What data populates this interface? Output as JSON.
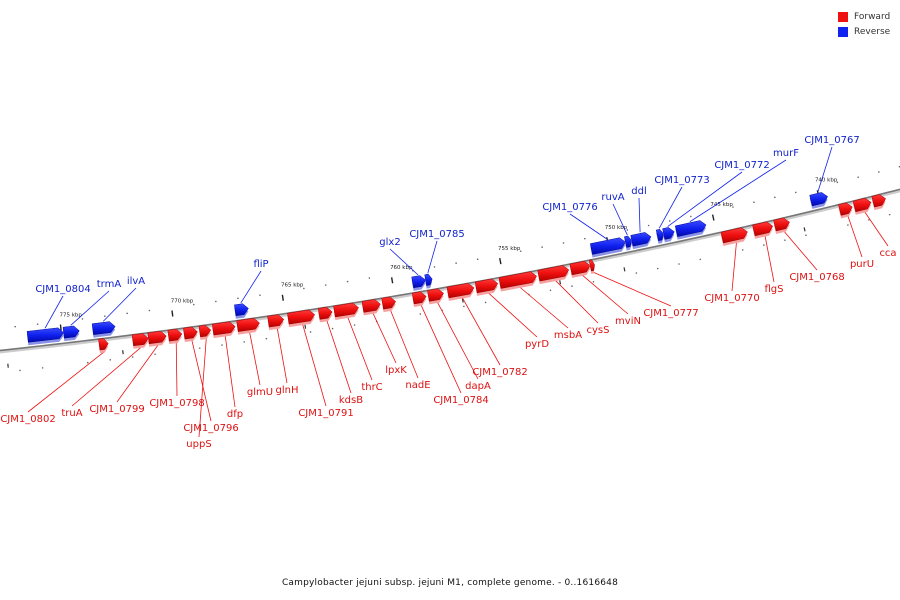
{
  "caption": "Campylobacter jejuni subsp. jejuni M1, complete genome. - 0..1616648",
  "legend": [
    {
      "label": "Forward",
      "color": "#ee1111"
    },
    {
      "label": "Reverse",
      "color": "#1122ee"
    }
  ],
  "colors": {
    "forward": "#ee1111",
    "reverse": "#1122ee",
    "backbone": "#888888"
  },
  "ticks": [
    {
      "label": "775 kbp",
      "kbp": 775
    },
    {
      "label": "770 kbp",
      "kbp": 770
    },
    {
      "label": "765 kbp",
      "kbp": 765
    },
    {
      "label": "760 kbp",
      "kbp": 760
    },
    {
      "label": "755 kbp",
      "kbp": 755
    },
    {
      "label": "750 kbp",
      "kbp": 750
    },
    {
      "label": "745 kbp",
      "kbp": 745
    },
    {
      "label": "740 kbp",
      "kbp": 740
    }
  ],
  "genes": [
    {
      "name": "CJM1_0804",
      "strand": "reverse",
      "start": 776.5,
      "end": 774.9,
      "show_label": true
    },
    {
      "name": "trmA",
      "strand": "reverse",
      "start": 774.9,
      "end": 774.2,
      "show_label": true
    },
    {
      "name": "ilvA",
      "strand": "reverse",
      "start": 773.6,
      "end": 772.6,
      "show_label": true
    },
    {
      "name": "fliP",
      "strand": "reverse",
      "start": 767.2,
      "end": 766.6,
      "show_label": true
    },
    {
      "name": "glx2",
      "strand": "reverse",
      "start": 759.1,
      "end": 758.5,
      "show_label": true
    },
    {
      "name": "CJM1_0785",
      "strand": "reverse",
      "start": 758.5,
      "end": 758.2,
      "show_label": true
    },
    {
      "name": "CJM1_0776",
      "strand": "reverse",
      "start": 750.8,
      "end": 749.2,
      "show_label": true
    },
    {
      "name": "ruvA",
      "strand": "reverse",
      "start": 749.2,
      "end": 748.9,
      "show_label": true
    },
    {
      "name": "ddl",
      "strand": "reverse",
      "start": 748.9,
      "end": 748.0,
      "show_label": true
    },
    {
      "name": "CJM1_0773",
      "strand": "reverse",
      "start": 747.7,
      "end": 747.4,
      "show_label": true
    },
    {
      "name": "CJM1_0772",
      "strand": "reverse",
      "start": 747.4,
      "end": 746.9,
      "show_label": true
    },
    {
      "name": "murF",
      "strand": "reverse",
      "start": 746.8,
      "end": 745.4,
      "show_label": true
    },
    {
      "name": "CJM1_0767",
      "strand": "reverse",
      "start": 740.4,
      "end": 739.6,
      "show_label": true
    },
    {
      "name": "CJM1_0802",
      "strand": "forward",
      "start": 773.4,
      "end": 773.0,
      "show_label": true
    },
    {
      "name": "truA",
      "strand": "forward",
      "start": 771.9,
      "end": 771.2,
      "show_label": true
    },
    {
      "name": "CJM1_0799",
      "strand": "forward",
      "start": 771.2,
      "end": 770.4,
      "show_label": true
    },
    {
      "name": "CJM1_0798",
      "strand": "forward",
      "start": 770.3,
      "end": 769.7,
      "show_label": true
    },
    {
      "name": "CJM1_0796",
      "strand": "forward",
      "start": 769.6,
      "end": 769.0,
      "show_label": true
    },
    {
      "name": "uppS",
      "strand": "forward",
      "start": 768.9,
      "end": 768.4,
      "show_label": true
    },
    {
      "name": "dfp",
      "strand": "forward",
      "start": 768.3,
      "end": 767.3,
      "show_label": true
    },
    {
      "name": "glmU",
      "strand": "forward",
      "start": 767.2,
      "end": 766.2,
      "show_label": true
    },
    {
      "name": "glnH",
      "strand": "forward",
      "start": 765.8,
      "end": 765.1,
      "show_label": true
    },
    {
      "name": "CJM1_0791",
      "strand": "forward",
      "start": 764.9,
      "end": 763.7,
      "show_label": true
    },
    {
      "name": "kdsB",
      "strand": "forward",
      "start": 763.5,
      "end": 762.9,
      "show_label": true
    },
    {
      "name": "thrC",
      "strand": "forward",
      "start": 762.8,
      "end": 761.7,
      "show_label": true
    },
    {
      "name": "lpxK",
      "strand": "forward",
      "start": 761.5,
      "end": 760.7,
      "show_label": true
    },
    {
      "name": "nadE",
      "strand": "forward",
      "start": 760.6,
      "end": 760.0,
      "show_label": true
    },
    {
      "name": "CJM1_0784",
      "strand": "forward",
      "start": 759.2,
      "end": 758.6,
      "show_label": true
    },
    {
      "name": "dapA",
      "strand": "forward",
      "start": 758.5,
      "end": 757.8,
      "show_label": true
    },
    {
      "name": "CJM1_0782",
      "strand": "forward",
      "start": 757.6,
      "end": 756.4,
      "show_label": true
    },
    {
      "name": "pyrD",
      "strand": "forward",
      "start": 756.3,
      "end": 755.3,
      "show_label": true
    },
    {
      "name": "msbA",
      "strand": "forward",
      "start": 755.2,
      "end": 753.5,
      "show_label": true
    },
    {
      "name": "cysS",
      "strand": "forward",
      "start": 753.4,
      "end": 752.0,
      "show_label": true
    },
    {
      "name": "mviN",
      "strand": "forward",
      "start": 751.9,
      "end": 751.0,
      "show_label": true
    },
    {
      "name": "CJM1_0777",
      "strand": "forward",
      "start": 751.0,
      "end": 750.8,
      "show_label": true
    },
    {
      "name": "CJM1_0770",
      "strand": "forward",
      "start": 744.8,
      "end": 743.6,
      "show_label": true
    },
    {
      "name": "flgS",
      "strand": "forward",
      "start": 743.3,
      "end": 742.4,
      "show_label": true
    },
    {
      "name": "CJM1_0768",
      "strand": "forward",
      "start": 742.3,
      "end": 741.6,
      "show_label": true
    },
    {
      "name": "purU",
      "strand": "forward",
      "start": 739.2,
      "end": 738.6,
      "show_label": true
    },
    {
      "name": "cca",
      "strand": "forward",
      "start": 738.5,
      "end": 737.7,
      "show_label": true
    },
    {
      "name": "",
      "strand": "forward",
      "start": 737.6,
      "end": 737.0,
      "show_label": false
    }
  ]
}
